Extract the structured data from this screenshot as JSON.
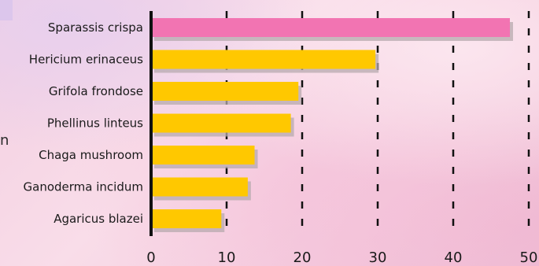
{
  "chart_data": {
    "type": "bar",
    "orientation": "horizontal",
    "categories": [
      "Sparassis crispa",
      "Hericium erinaceus",
      "Grifola frondose",
      "Phellinus linteus",
      "Chaga mushroom",
      "Ganoderma incidum",
      "Agaricus blazei"
    ],
    "values": [
      47.5,
      29.7,
      19.5,
      18.5,
      13.7,
      12.8,
      9.3
    ],
    "highlight_index": 0,
    "xlim": [
      0,
      50
    ],
    "xticks": [
      "0",
      "10",
      "20",
      "30",
      "40",
      "50"
    ],
    "grid": "vertical-dashed",
    "title": "",
    "xlabel": "",
    "ylabel": "",
    "colors": {
      "highlight": "#f274b2",
      "bar": "#ffc800",
      "shadow": "#b7a9ad",
      "axis": "#111111",
      "grid": "#111111"
    }
  },
  "edge_text": "n"
}
